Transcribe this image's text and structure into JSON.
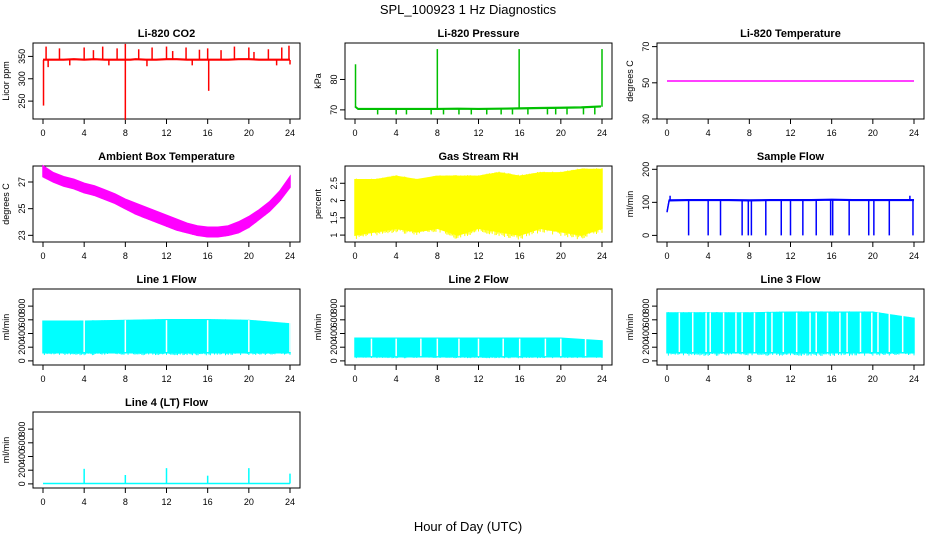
{
  "figure": {
    "title": "SPL_100923  1 Hz Diagnostics",
    "xlabel": "Hour of Day (UTC)"
  },
  "chart_data": [
    {
      "type": "line",
      "title": "Li-820 CO2",
      "ylabel": "Licor ppm",
      "color": "#ff0000",
      "xlim": [
        0,
        24
      ],
      "ylim": [
        210,
        380
      ],
      "yticks": [
        250,
        300,
        350
      ],
      "x": [
        0,
        1,
        2,
        3,
        4,
        5,
        6,
        7,
        7.5,
        8,
        8.5,
        9,
        10,
        11,
        12,
        13,
        14,
        15,
        16,
        17,
        18,
        19,
        20,
        21,
        22,
        23,
        24
      ],
      "y": [
        342,
        342,
        342,
        343,
        342,
        343,
        342,
        342,
        342,
        342,
        342,
        343,
        342,
        342,
        343,
        343,
        342,
        342,
        342,
        342,
        342,
        343,
        343,
        342,
        342,
        342,
        342
      ],
      "spikes_up": [
        [
          0.3,
          372
        ],
        [
          1.6,
          368
        ],
        [
          4,
          370
        ],
        [
          4.9,
          364
        ],
        [
          5.8,
          372
        ],
        [
          7.2,
          368
        ],
        [
          8,
          378
        ],
        [
          9.3,
          366
        ],
        [
          10.6,
          370
        ],
        [
          12,
          372
        ],
        [
          12.6,
          362
        ],
        [
          13.9,
          370
        ],
        [
          15.2,
          365
        ],
        [
          16,
          368
        ],
        [
          17.3,
          364
        ],
        [
          18.6,
          372
        ],
        [
          20,
          370
        ],
        [
          20.5,
          360
        ],
        [
          21.9,
          366
        ],
        [
          23.2,
          370
        ],
        [
          23.9,
          374
        ]
      ],
      "spikes_down": [
        [
          0.05,
          240
        ],
        [
          0.5,
          326
        ],
        [
          2.6,
          330
        ],
        [
          6.4,
          330
        ],
        [
          8,
          208
        ],
        [
          10.1,
          328
        ],
        [
          14.5,
          330
        ],
        [
          16.1,
          273
        ],
        [
          22.7,
          330
        ],
        [
          24,
          332
        ]
      ]
    },
    {
      "type": "line",
      "title": "Li-820 Pressure",
      "ylabel": "kPa",
      "color": "#00c000",
      "xlim": [
        0,
        24
      ],
      "ylim": [
        67,
        92
      ],
      "yticks": [
        70,
        80
      ],
      "x": [
        0,
        0.3,
        2,
        4,
        6,
        8,
        10,
        12,
        14,
        16,
        18,
        20,
        22,
        23.9
      ],
      "y": [
        71,
        70.2,
        70.2,
        70.2,
        70.2,
        70.2,
        70.3,
        70.2,
        70.3,
        70.4,
        70.5,
        70.6,
        70.7,
        71
      ],
      "spikes_up": [
        [
          0.05,
          85
        ],
        [
          8,
          90
        ],
        [
          15.95,
          90
        ],
        [
          24,
          90
        ]
      ],
      "spikes_down": [
        [
          2.2,
          68.5
        ],
        [
          4,
          68.5
        ],
        [
          5,
          68.5
        ],
        [
          7.4,
          68.5
        ],
        [
          8.6,
          68.5
        ],
        [
          10.1,
          68.5
        ],
        [
          11.3,
          68.5
        ],
        [
          12.8,
          68.5
        ],
        [
          14.2,
          68.5
        ],
        [
          15.3,
          68.5
        ],
        [
          16.8,
          68.5
        ],
        [
          18.7,
          68.5
        ],
        [
          19.5,
          68.5
        ],
        [
          20.6,
          68.5
        ],
        [
          22.2,
          68.5
        ],
        [
          23.3,
          68.5
        ]
      ]
    },
    {
      "type": "line",
      "title": "Li-820 Temperature",
      "ylabel": "degrees C",
      "color": "#ff00ff",
      "xlim": [
        0,
        24
      ],
      "ylim": [
        30,
        72
      ],
      "yticks": [
        30,
        50,
        70
      ],
      "x": [
        0,
        24
      ],
      "y": [
        51,
        51
      ]
    },
    {
      "type": "band",
      "title": "Ambient Box Temperature",
      "ylabel": "degrees C",
      "color": "#ff00ff",
      "xlim": [
        0,
        24
      ],
      "ylim": [
        22.5,
        28.2
      ],
      "yticks": [
        23,
        25,
        27
      ],
      "x": [
        0,
        1,
        2,
        3,
        4,
        5,
        6,
        7,
        8,
        9,
        10,
        11,
        12,
        13,
        14,
        15,
        16,
        17,
        18,
        19,
        20,
        21,
        22,
        23,
        24
      ],
      "low": [
        27.4,
        27.0,
        26.7,
        26.5,
        26.2,
        26.0,
        25.7,
        25.4,
        25.0,
        24.6,
        24.3,
        24.0,
        23.7,
        23.4,
        23.2,
        23.0,
        22.9,
        22.9,
        23.0,
        23.2,
        23.6,
        24.2,
        24.8,
        25.6,
        26.6
      ],
      "high": [
        28.2,
        27.7,
        27.4,
        27.2,
        26.9,
        26.7,
        26.4,
        26.1,
        25.7,
        25.4,
        25.1,
        24.8,
        24.5,
        24.2,
        23.9,
        23.7,
        23.6,
        23.6,
        23.7,
        24.0,
        24.4,
        24.9,
        25.5,
        26.3,
        27.4
      ]
    },
    {
      "type": "band",
      "title": "Gas Stream RH",
      "ylabel": "percent",
      "color": "#ffff00",
      "xlim": [
        0,
        24
      ],
      "ylim": [
        0.8,
        3.0
      ],
      "yticks": [
        1.0,
        1.5,
        2.0,
        2.5
      ],
      "x": [
        0,
        2,
        4,
        6,
        8,
        10,
        12,
        14,
        16,
        18,
        20,
        22,
        24
      ],
      "low": [
        1.0,
        1.1,
        1.2,
        1.1,
        1.2,
        1.0,
        1.2,
        1.1,
        1.0,
        1.2,
        1.1,
        1.0,
        1.2
      ],
      "high": [
        2.6,
        2.6,
        2.7,
        2.6,
        2.7,
        2.7,
        2.7,
        2.8,
        2.7,
        2.8,
        2.8,
        2.9,
        2.9
      ]
    },
    {
      "type": "line",
      "title": "Sample Flow",
      "ylabel": "ml/min",
      "color": "#0000ff",
      "xlim": [
        0,
        24
      ],
      "ylim": [
        -20,
        210
      ],
      "yticks": [
        0,
        100,
        200
      ],
      "x": [
        0,
        0.2,
        2,
        4,
        6,
        8,
        10,
        12,
        14,
        16,
        18,
        20,
        22,
        24
      ],
      "y": [
        70,
        105,
        106,
        106,
        106,
        105,
        106,
        106,
        106,
        107,
        106,
        106,
        106,
        106
      ],
      "spikes_up": [
        [
          0.3,
          120
        ],
        [
          23.6,
          120
        ]
      ],
      "spikes_down": [
        [
          2.1,
          0
        ],
        [
          4,
          0
        ],
        [
          5.2,
          0
        ],
        [
          7.3,
          0
        ],
        [
          7.9,
          0
        ],
        [
          8.2,
          0
        ],
        [
          9.6,
          0
        ],
        [
          11.1,
          0
        ],
        [
          12,
          0
        ],
        [
          13.2,
          0
        ],
        [
          14.5,
          0
        ],
        [
          15.9,
          0
        ],
        [
          16.1,
          0
        ],
        [
          17.7,
          0
        ],
        [
          19.6,
          0
        ],
        [
          20.1,
          0
        ],
        [
          21.6,
          0
        ],
        [
          23.9,
          0
        ]
      ]
    },
    {
      "type": "band",
      "title": "Line 1 Flow",
      "ylabel": "ml/min",
      "color": "#00ffff",
      "xlim": [
        0,
        24
      ],
      "ylim": [
        -60,
        1050
      ],
      "yticks": [
        0,
        200,
        400,
        600,
        800
      ],
      "x": [
        0,
        4,
        8,
        12,
        16,
        20,
        24
      ],
      "low": [
        120,
        120,
        120,
        120,
        120,
        120,
        120
      ],
      "high": [
        580,
        580,
        590,
        600,
        600,
        590,
        540
      ],
      "gaps": [
        4,
        8,
        12,
        16,
        20,
        24
      ]
    },
    {
      "type": "band",
      "title": "Line 2 Flow",
      "ylabel": "ml/min",
      "color": "#00ffff",
      "xlim": [
        0,
        24
      ],
      "ylim": [
        -60,
        1050
      ],
      "yticks": [
        0,
        200,
        400,
        600,
        800
      ],
      "x": [
        0,
        4,
        8,
        12,
        16,
        20,
        24
      ],
      "low": [
        60,
        60,
        60,
        60,
        60,
        60,
        60
      ],
      "high": [
        330,
        330,
        330,
        330,
        330,
        330,
        290
      ],
      "gaps": [
        1.6,
        4,
        6.4,
        8,
        10.1,
        12,
        14.4,
        16,
        18.5,
        20,
        22.4
      ]
    },
    {
      "type": "band",
      "title": "Line 3 Flow",
      "ylabel": "ml/min",
      "color": "#00ffff",
      "xlim": [
        0,
        24
      ],
      "ylim": [
        -60,
        1050
      ],
      "yticks": [
        0,
        200,
        400,
        600,
        800
      ],
      "x": [
        0,
        4,
        8,
        12,
        16,
        20,
        24
      ],
      "low": [
        120,
        120,
        120,
        120,
        120,
        120,
        120
      ],
      "high": [
        700,
        700,
        700,
        710,
        710,
        710,
        620
      ],
      "gaps": [
        1.2,
        2.5,
        3.8,
        4.2,
        5.5,
        6.7,
        7.3,
        8.5,
        9.6,
        10.2,
        11.3,
        12.6,
        13.9,
        14.5,
        15.6,
        16.8,
        17.5,
        18.8,
        19.9,
        20.5,
        21.6,
        22.9
      ]
    },
    {
      "type": "line",
      "title": "Line 4 (LT) Flow",
      "ylabel": "ml/min",
      "color": "#00ffff",
      "xlim": [
        0,
        24
      ],
      "ylim": [
        -60,
        1050
      ],
      "yticks": [
        0,
        200,
        400,
        600,
        800
      ],
      "x": [
        0,
        24
      ],
      "y": [
        5,
        5
      ],
      "spikes_up": [
        [
          4,
          220
        ],
        [
          8,
          130
        ],
        [
          12,
          230
        ],
        [
          16,
          120
        ],
        [
          20,
          230
        ],
        [
          24,
          150
        ]
      ]
    }
  ]
}
